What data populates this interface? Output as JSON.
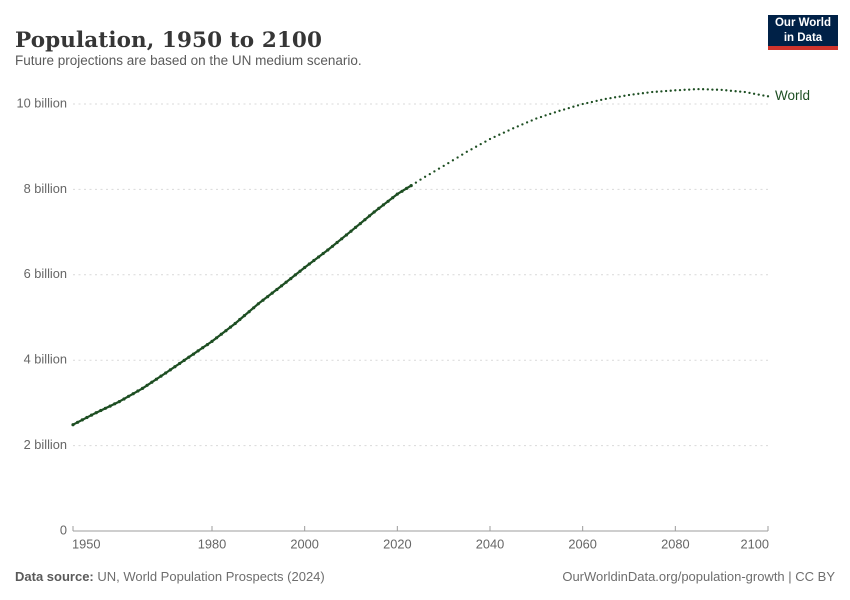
{
  "header": {
    "title": "Population, 1950 to 2100",
    "subtitle": "Future projections are based on the UN medium scenario.",
    "logo": {
      "line1": "Our World",
      "line2": "in Data",
      "bg_color": "#002147",
      "accent_color": "#d0342c"
    }
  },
  "footer": {
    "source_label": "Data source:",
    "source_text": " UN, World Population Prospects (2024)",
    "credit": "OurWorldinData.org/population-growth | CC BY"
  },
  "chart_data": {
    "type": "line",
    "title": "Population, 1950 to 2100",
    "subtitle": "Future projections are based on the UN medium scenario.",
    "xlabel": "",
    "ylabel": "",
    "xlim": [
      1950,
      2100
    ],
    "ylim": [
      0,
      10
    ],
    "grid": "dashed-horizontal",
    "legend_position": "end-of-line",
    "x_ticks": [
      1950,
      1980,
      2000,
      2020,
      2040,
      2060,
      2080,
      2100
    ],
    "y_ticks": [
      {
        "value": 0,
        "label": "0"
      },
      {
        "value": 2,
        "label": "2 billion"
      },
      {
        "value": 4,
        "label": "4 billion"
      },
      {
        "value": 6,
        "label": "6 billion"
      },
      {
        "value": 8,
        "label": "8 billion"
      },
      {
        "value": 10,
        "label": "10 billion"
      }
    ],
    "colors": {
      "grid": "#d9d9d9",
      "axis": "#9c9c9c",
      "tick_label": "#666666"
    },
    "series": [
      {
        "name": "World",
        "color": "#1d4e22",
        "historical_style": "solid-with-markers",
        "projection_style": "dotted",
        "historical": [
          [
            1950,
            2.49
          ],
          [
            1955,
            2.77
          ],
          [
            1960,
            3.03
          ],
          [
            1965,
            3.34
          ],
          [
            1970,
            3.7
          ],
          [
            1975,
            4.07
          ],
          [
            1980,
            4.44
          ],
          [
            1985,
            4.86
          ],
          [
            1990,
            5.32
          ],
          [
            1995,
            5.74
          ],
          [
            2000,
            6.17
          ],
          [
            2005,
            6.58
          ],
          [
            2010,
            7.02
          ],
          [
            2015,
            7.47
          ],
          [
            2020,
            7.89
          ],
          [
            2023,
            8.09
          ]
        ],
        "projection": [
          [
            2023,
            8.09
          ],
          [
            2025,
            8.23
          ],
          [
            2030,
            8.55
          ],
          [
            2035,
            8.88
          ],
          [
            2040,
            9.18
          ],
          [
            2045,
            9.43
          ],
          [
            2050,
            9.66
          ],
          [
            2055,
            9.84
          ],
          [
            2060,
            10.0
          ],
          [
            2065,
            10.12
          ],
          [
            2070,
            10.21
          ],
          [
            2075,
            10.28
          ],
          [
            2080,
            10.32
          ],
          [
            2085,
            10.35
          ],
          [
            2090,
            10.33
          ],
          [
            2095,
            10.28
          ],
          [
            2100,
            10.18
          ]
        ]
      }
    ]
  }
}
